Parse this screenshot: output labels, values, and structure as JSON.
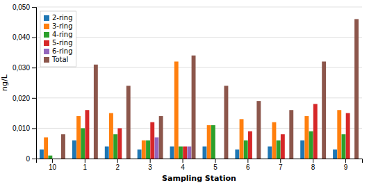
{
  "chart_data": {
    "type": "bar",
    "xlabel": "Sampling Station",
    "ylabel": "ng/L",
    "categories": [
      "10",
      "1",
      "2",
      "3",
      "4",
      "5",
      "6",
      "7",
      "8",
      "9"
    ],
    "series": [
      {
        "name": "2-ring",
        "values": [
          0.003,
          0.006,
          0.004,
          0.003,
          0.004,
          0.004,
          0.003,
          0.004,
          0.006,
          0.003
        ]
      },
      {
        "name": "3-ring",
        "values": [
          0.007,
          0.014,
          0.015,
          0.006,
          0.032,
          0.011,
          0.013,
          0.012,
          0.014,
          0.016
        ]
      },
      {
        "name": "4-ring",
        "values": [
          0.001,
          0.01,
          0.008,
          0.006,
          0.004,
          0.011,
          0.006,
          0.006,
          0.009,
          0.008
        ]
      },
      {
        "name": "5-ring",
        "values": [
          0.0,
          0.016,
          0.01,
          0.012,
          0.004,
          0.0,
          0.009,
          0.008,
          0.018,
          0.015
        ]
      },
      {
        "name": "6-ring",
        "values": [
          0.0,
          0.0,
          0.0,
          0.007,
          0.004,
          0.0,
          0.0,
          0.0,
          0.0,
          0.0
        ]
      },
      {
        "name": "Total",
        "values": [
          0.008,
          0.031,
          0.024,
          0.014,
          0.034,
          0.024,
          0.019,
          0.016,
          0.032,
          0.046
        ]
      }
    ],
    "ylim": [
      0,
      0.05
    ],
    "yticks": [
      0,
      {
        "value": 0.01,
        "label": "0,010"
      },
      {
        "value": 0.02,
        "label": "0,020"
      },
      {
        "value": 0.03,
        "label": "0,030"
      },
      {
        "value": 0.04,
        "label": "0,040"
      },
      {
        "value": 0.05,
        "label": "0,050"
      }
    ],
    "grid": true,
    "legend": "upper left"
  }
}
